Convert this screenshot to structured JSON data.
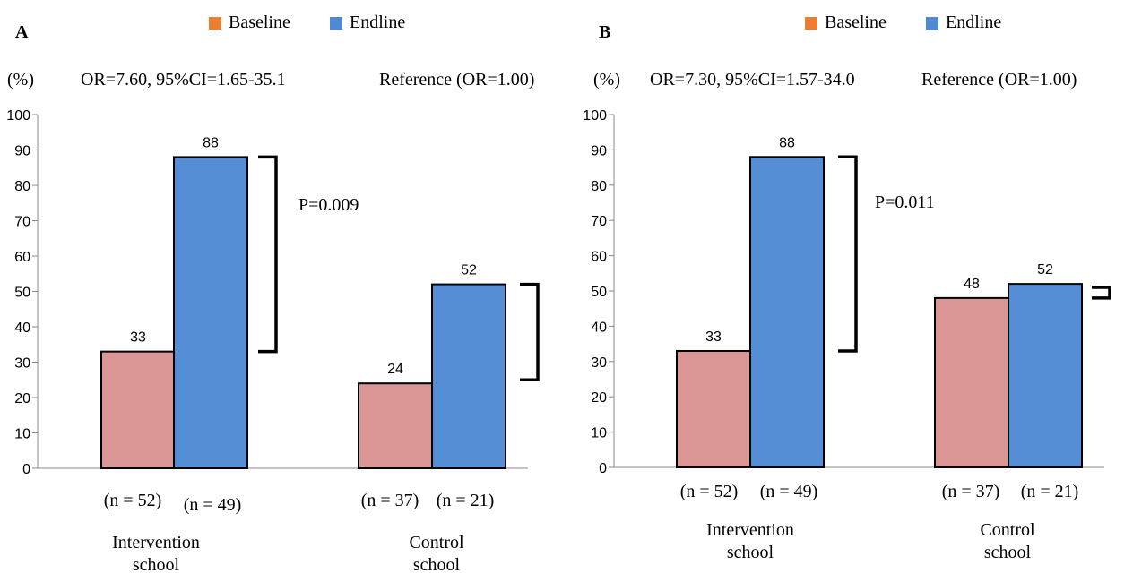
{
  "chart_data": [
    {
      "type": "bar",
      "panel_label": "A",
      "y_unit": "(%)",
      "ylim": [
        0,
        100
      ],
      "y_ticks": [
        "0",
        "10",
        "20",
        "30",
        "40",
        "50",
        "60",
        "70",
        "80",
        "90",
        "100"
      ],
      "categories": [
        "Intervention school",
        "Control school"
      ],
      "category_lines": [
        [
          "Intervention",
          "school"
        ],
        [
          "Control",
          "school"
        ]
      ],
      "series": [
        {
          "name": "Baseline",
          "values": [
            33,
            24
          ],
          "value_labels": [
            "33",
            "24"
          ],
          "n_labels": [
            "(n = 52)",
            "(n = 37)"
          ]
        },
        {
          "name": "Endline",
          "values": [
            88,
            52
          ],
          "value_labels": [
            "88",
            "52"
          ],
          "n_labels": [
            "(n = 49)",
            "(n = 21)"
          ]
        }
      ],
      "annotations": {
        "or_left": "OR=7.60, 95%CI=1.65-35.1",
        "or_right": "Reference (OR=1.00)",
        "p_value": "P=0.009"
      },
      "legend": {
        "position": "top",
        "entries": [
          "Baseline",
          "Endline"
        ],
        "colors": [
          "#ED7D31",
          "#4F88D6"
        ]
      },
      "bar_colors": [
        "#D99694",
        "#558ED5"
      ],
      "grid": false
    },
    {
      "type": "bar",
      "panel_label": "B",
      "y_unit": "(%)",
      "ylim": [
        0,
        100
      ],
      "y_ticks": [
        "0",
        "10",
        "20",
        "30",
        "40",
        "50",
        "60",
        "70",
        "80",
        "90",
        "100"
      ],
      "categories": [
        "Intervention school",
        "Control school"
      ],
      "category_lines": [
        [
          "Intervention",
          "school"
        ],
        [
          "Control",
          "school"
        ]
      ],
      "series": [
        {
          "name": "Baseline",
          "values": [
            33,
            48
          ],
          "value_labels": [
            "33",
            "48"
          ],
          "n_labels": [
            "(n = 52)",
            "(n = 37)"
          ]
        },
        {
          "name": "Endline",
          "values": [
            88,
            52
          ],
          "value_labels": [
            "88",
            "52"
          ],
          "n_labels": [
            "(n = 49)",
            "(n = 21)"
          ]
        }
      ],
      "annotations": {
        "or_left": "OR=7.30, 95%CI=1.57-34.0",
        "or_right": "Reference (OR=1.00)",
        "p_value": "P=0.011"
      },
      "legend": {
        "position": "top",
        "entries": [
          "Baseline",
          "Endline"
        ],
        "colors": [
          "#ED7D31",
          "#4F88D6"
        ]
      },
      "bar_colors": [
        "#D99694",
        "#558ED5"
      ],
      "grid": false
    }
  ]
}
